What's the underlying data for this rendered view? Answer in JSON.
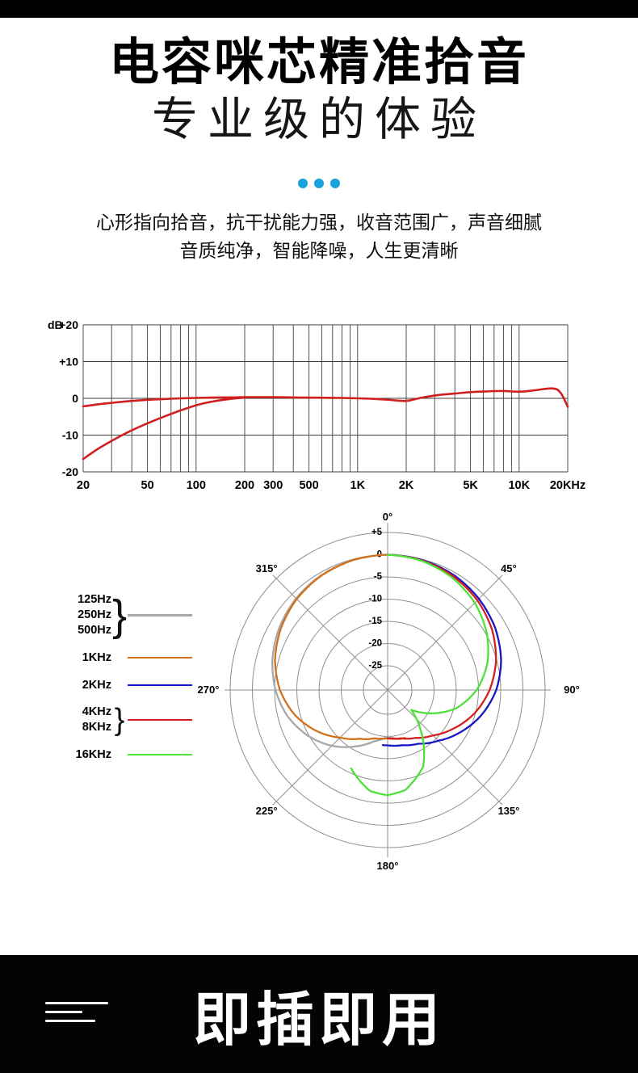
{
  "header": {
    "title": "电容咪芯精准拾音",
    "subtitle": "专业级的体验",
    "description": [
      "心形指向拾音，抗干扰能力强，收音范围广，声音细腻",
      "音质纯净，智能降噪，人生更清晰"
    ]
  },
  "footer": {
    "title": "即插即用"
  },
  "colors": {
    "accent_blue": "#16a3dc",
    "banner_black": "#000000",
    "grid_dark": "#3d3d3d",
    "polar_gray": "#8f8f8f"
  },
  "chart_data": [
    {
      "type": "line",
      "name": "frequency-response",
      "x_scale": "log",
      "xlim": [
        20,
        20000
      ],
      "ylim": [
        -20,
        20
      ],
      "y_unit": "dB",
      "y_ticks": [
        20,
        10,
        0,
        -10,
        -20
      ],
      "y_tick_labels": [
        "+20",
        "+10",
        "0",
        "-10",
        "-20"
      ],
      "x_ticks": [
        {
          "f": 20,
          "label": "20"
        },
        {
          "f": 50,
          "label": "50"
        },
        {
          "f": 100,
          "label": "100"
        },
        {
          "f": 200,
          "label": "200"
        },
        {
          "f": 300,
          "label": "300"
        },
        {
          "f": 500,
          "label": "500"
        },
        {
          "f": 1000,
          "label": "1K"
        },
        {
          "f": 2000,
          "label": "2K"
        },
        {
          "f": 5000,
          "label": "5K"
        },
        {
          "f": 10000,
          "label": "10K"
        },
        {
          "f": 20000,
          "label": "20KHz"
        }
      ],
      "grid_freqs": [
        20,
        30,
        40,
        50,
        60,
        70,
        80,
        90,
        100,
        200,
        300,
        400,
        500,
        600,
        700,
        800,
        900,
        1000,
        2000,
        3000,
        4000,
        5000,
        6000,
        7000,
        8000,
        9000,
        10000,
        20000
      ],
      "series": [
        {
          "name": "on-axis-response",
          "color": "#cf1f1f",
          "points": [
            [
              20,
              -2.2
            ],
            [
              25,
              -1.6
            ],
            [
              32,
              -1.1
            ],
            [
              40,
              -0.7
            ],
            [
              50,
              -0.4
            ],
            [
              63,
              -0.2
            ],
            [
              80,
              0
            ],
            [
              100,
              0.1
            ],
            [
              125,
              0.2
            ],
            [
              160,
              0.25
            ],
            [
              200,
              0.3
            ],
            [
              250,
              0.3
            ],
            [
              315,
              0.3
            ],
            [
              400,
              0.25
            ],
            [
              500,
              0.2
            ],
            [
              630,
              0.15
            ],
            [
              800,
              0.1
            ],
            [
              1000,
              0
            ],
            [
              1250,
              -0.15
            ],
            [
              1600,
              -0.45
            ],
            [
              2000,
              -0.7
            ],
            [
              2500,
              0.2
            ],
            [
              3150,
              0.9
            ],
            [
              4000,
              1.3
            ],
            [
              5000,
              1.7
            ],
            [
              6300,
              1.9
            ],
            [
              8000,
              2
            ],
            [
              10000,
              1.8
            ],
            [
              12500,
              2.2
            ],
            [
              16000,
              2.7
            ],
            [
              18000,
              1.6
            ],
            [
              20000,
              -2.3
            ]
          ]
        },
        {
          "name": "low-frequency-rolloff",
          "color": "#cf1f1f",
          "points": [
            [
              20,
              -16.5
            ],
            [
              25,
              -13.6
            ],
            [
              32,
              -10.9
            ],
            [
              40,
              -8.7
            ],
            [
              50,
              -6.8
            ],
            [
              63,
              -5
            ],
            [
              80,
              -3.3
            ],
            [
              100,
              -1.9
            ],
            [
              125,
              -0.9
            ],
            [
              160,
              -0.2
            ],
            [
              200,
              0.2
            ]
          ]
        }
      ]
    },
    {
      "type": "polar",
      "name": "polar-pattern",
      "angle_ticks_deg": [
        0,
        45,
        90,
        135,
        180,
        225,
        270,
        315
      ],
      "angle_labels": [
        "0°",
        "45°",
        "90°",
        "135°",
        "180°",
        "225°",
        "270°",
        "315°"
      ],
      "radial_ticks_db": [
        5,
        0,
        -5,
        -10,
        -15,
        -20,
        -25
      ],
      "radial_labels": [
        "+5",
        "0",
        "-5",
        "-10",
        "-15",
        "-20",
        "-25"
      ],
      "brace_glyph": "}",
      "legend": [
        {
          "labels": [
            "125Hz",
            "250Hz",
            "500Hz"
          ],
          "color": "#a8a8a8"
        },
        {
          "labels": [
            "1KHz"
          ],
          "color": "#d2711c"
        },
        {
          "labels": [
            "2KHz"
          ],
          "color": "#1717c9"
        },
        {
          "labels": [
            "4KHz",
            "8KHz"
          ],
          "color": "#d61e1e"
        },
        {
          "labels": [
            "16KHz"
          ],
          "color": "#4de13a"
        }
      ],
      "series": [
        {
          "name": "125-500hz",
          "color": "#a8a8a8",
          "points": [
            [
              0,
              0
            ],
            [
              -15,
              -0.2
            ],
            [
              -30,
              -0.6
            ],
            [
              -45,
              -1.3
            ],
            [
              -60,
              -2.3
            ],
            [
              -75,
              -3.6
            ],
            [
              -90,
              -5.2
            ],
            [
              -105,
              -7.2
            ],
            [
              -120,
              -9.8
            ],
            [
              -135,
              -12.7
            ],
            [
              -150,
              -15.8
            ],
            [
              -165,
              -18.5
            ],
            [
              -180,
              -20
            ],
            [
              -195,
              -19
            ]
          ]
        },
        {
          "name": "1khz",
          "color": "#d2711c",
          "points": [
            [
              0,
              0
            ],
            [
              -15,
              -0.2
            ],
            [
              -30,
              -0.7
            ],
            [
              -45,
              -1.5
            ],
            [
              -60,
              -2.7
            ],
            [
              -75,
              -4.2
            ],
            [
              -90,
              -6.2
            ],
            [
              -105,
              -8.8
            ],
            [
              -120,
              -12
            ],
            [
              -135,
              -15.3
            ],
            [
              -150,
              -17.8
            ],
            [
              -165,
              -19.2
            ],
            [
              -180,
              -19.6
            ],
            [
              -200,
              -19
            ]
          ]
        },
        {
          "name": "2khz",
          "color": "#1717c9",
          "points": [
            [
              0,
              0
            ],
            [
              15,
              -0.2
            ],
            [
              30,
              -0.6
            ],
            [
              45,
              -1.4
            ],
            [
              60,
              -2.5
            ],
            [
              75,
              -4
            ],
            [
              90,
              -6
            ],
            [
              105,
              -8.6
            ],
            [
              120,
              -11.5
            ],
            [
              135,
              -14.3
            ],
            [
              150,
              -16.5
            ],
            [
              165,
              -17.6
            ],
            [
              180,
              -18
            ],
            [
              185,
              -18
            ]
          ]
        },
        {
          "name": "4-8khz",
          "color": "#d61e1e",
          "points": [
            [
              0,
              0
            ],
            [
              15,
              -0.3
            ],
            [
              30,
              -0.9
            ],
            [
              45,
              -1.9
            ],
            [
              60,
              -3.3
            ],
            [
              75,
              -5.2
            ],
            [
              90,
              -7.5
            ],
            [
              105,
              -10.2
            ],
            [
              120,
              -13.2
            ],
            [
              135,
              -16
            ],
            [
              150,
              -18
            ],
            [
              165,
              -19.2
            ],
            [
              180,
              -19.6
            ]
          ]
        },
        {
          "name": "16khz",
          "color": "#4de13a",
          "points": [
            [
              0,
              0
            ],
            [
              15,
              -0.4
            ],
            [
              30,
              -1.3
            ],
            [
              45,
              -2.7
            ],
            [
              60,
              -4.7
            ],
            [
              75,
              -7.2
            ],
            [
              90,
              -10.4
            ],
            [
              105,
              -14.5
            ],
            [
              120,
              -20
            ],
            [
              130,
              -23.5
            ],
            [
              140,
              -19
            ],
            [
              155,
              -11.5
            ],
            [
              170,
              -7.6
            ],
            [
              180,
              -6.8
            ],
            [
              190,
              -7.4
            ],
            [
              205,
              -11
            ]
          ]
        }
      ]
    }
  ]
}
